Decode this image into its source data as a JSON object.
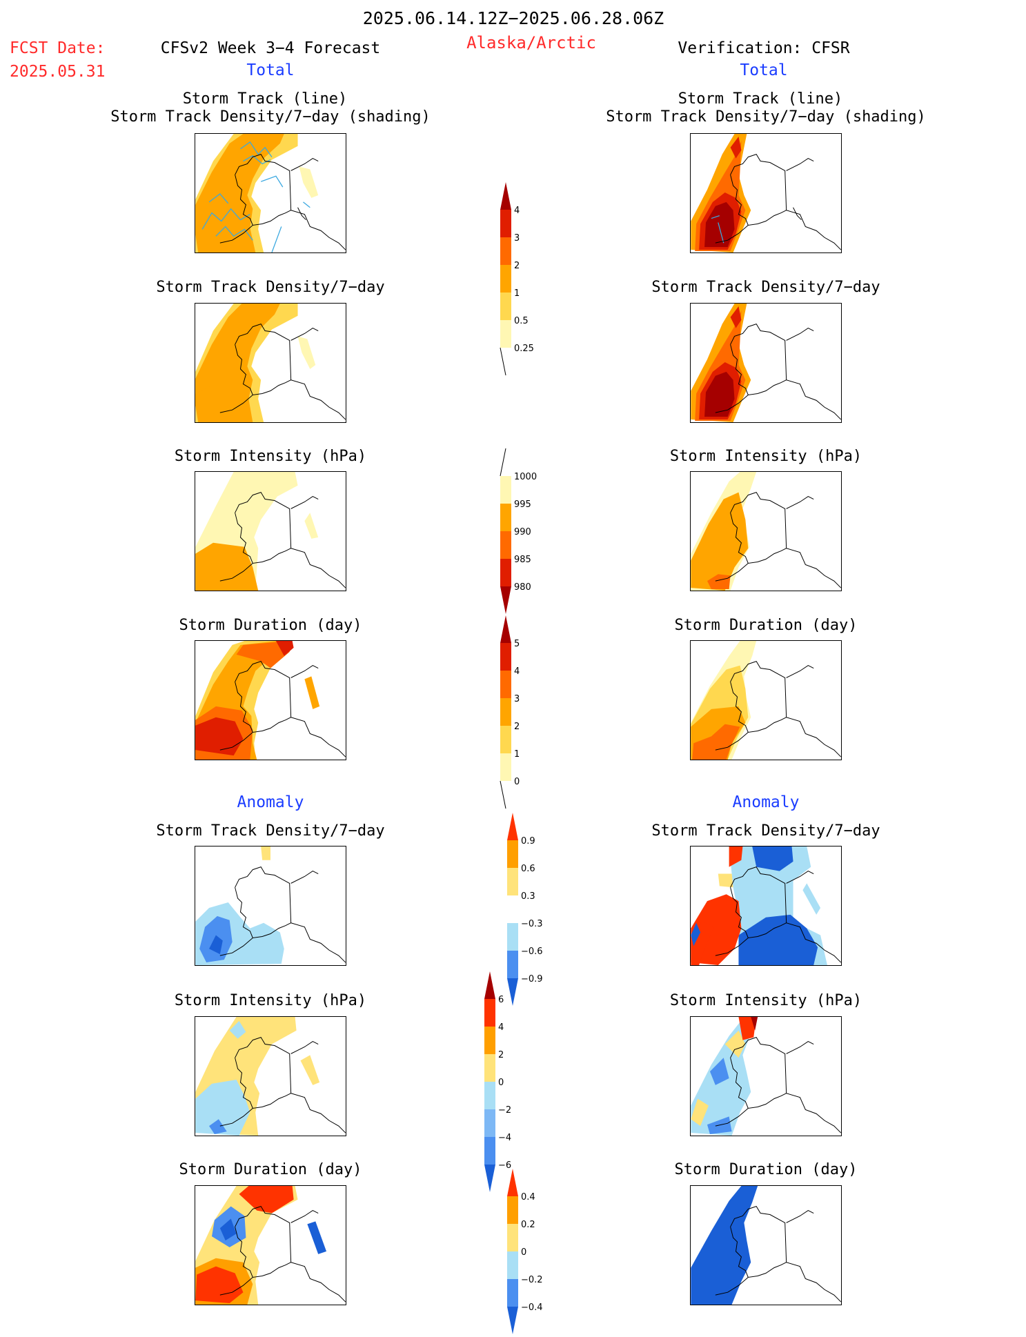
{
  "header": {
    "period": "2025.06.14.12Z−2025.06.28.06Z",
    "region": "Alaska/Arctic",
    "fcst_date_label": "FCST Date:",
    "fcst_date_value": "2025.05.31",
    "left_title": "CFSv2 Week 3−4 Forecast",
    "right_title": "Verification: CFSR",
    "left_section": "Total",
    "right_section": "Total",
    "anomaly_left": "Anomaly",
    "anomaly_right": "Anomaly"
  },
  "titles": {
    "track_line": "Storm Track (line)",
    "track_shading": "Storm Track Density/7−day (shading)",
    "density": "Storm Track Density/7−day",
    "intensity": "Storm Intensity (hPa)",
    "duration": "Storm Duration (day)"
  },
  "colorbars": {
    "density_total": [
      "4",
      "3",
      "2",
      "1",
      "0.5",
      "0.25"
    ],
    "intensity_total": [
      "1000",
      "995",
      "990",
      "985",
      "980"
    ],
    "duration_total": [
      "5",
      "4",
      "3",
      "2",
      "1",
      "0"
    ],
    "density_anom": [
      "0.9",
      "0.6",
      "0.3",
      "−0.3",
      "−0.6",
      "−0.9"
    ],
    "intensity_anom": [
      "6",
      "4",
      "2",
      "0",
      "−2",
      "−4",
      "−6"
    ],
    "duration_anom": [
      "0.4",
      "0.2",
      "0",
      "−0.2",
      "−0.4"
    ]
  },
  "colors": {
    "warm_scale": [
      "#fff7b3",
      "#ffd84f",
      "#ffa500",
      "#ff6a00",
      "#e01e00",
      "#a50000"
    ],
    "anom_scale": [
      "#1a5fd6",
      "#4b8ff0",
      "#a9dff5",
      "#ffffff",
      "#ffe37a",
      "#ff9f00",
      "#ff3300",
      "#a50000"
    ],
    "header_red": "#ff2a2a",
    "header_blue": "#1a3cff",
    "track_line": "#3aa8e0"
  }
}
